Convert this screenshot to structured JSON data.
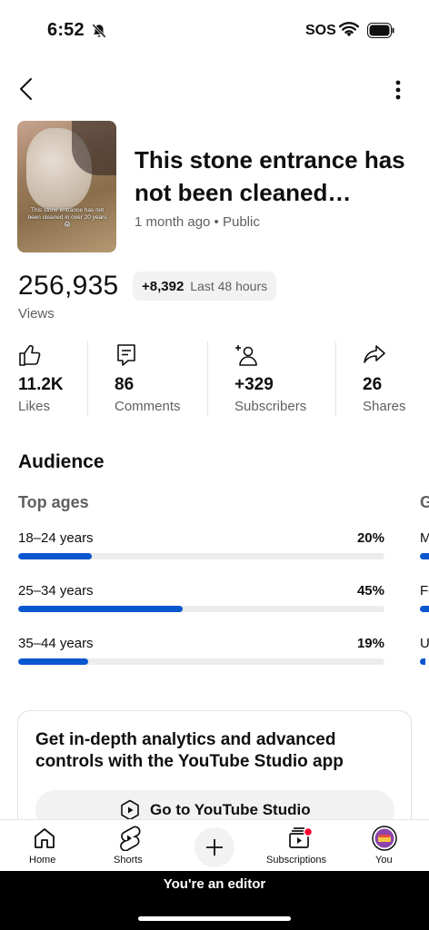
{
  "status_bar": {
    "time": "6:52",
    "sos": "SOS",
    "icons": [
      "bell-off-icon",
      "wifi-icon",
      "battery-icon"
    ]
  },
  "nav": {
    "back_icon": "chevron-left-icon",
    "more_icon": "more-vertical-icon"
  },
  "video": {
    "thumbnail_caption": "This stone entrance has not been cleaned in over 20 years 😱",
    "title": "This stone entrance has not been cleaned…",
    "meta": "1 month ago • Public"
  },
  "views": {
    "count": "256,935",
    "label": "Views",
    "delta": "+8,392",
    "delta_period": "Last 48 hours"
  },
  "stats": [
    {
      "icon": "thumbs-up-icon",
      "value": "11.2K",
      "label": "Likes"
    },
    {
      "icon": "comment-icon",
      "value": "86",
      "label": "Comments"
    },
    {
      "icon": "add-person-icon",
      "value": "+329",
      "label": "Subscribers"
    },
    {
      "icon": "share-icon",
      "value": "26",
      "label": "Shares"
    }
  ],
  "audience": {
    "title": "Audience",
    "ages_title": "Top ages",
    "next_card_title_peek": "G",
    "ages": [
      {
        "label": "18–24 years",
        "percent_text": "20%",
        "percent": 20
      },
      {
        "label": "25–34 years",
        "percent_text": "45%",
        "percent": 45
      },
      {
        "label": "35–44 years",
        "percent_text": "19%",
        "percent": 19
      }
    ],
    "next_card_peek_items": [
      "M",
      "Fe",
      "U"
    ]
  },
  "promo": {
    "text": "Get in-depth analytics and advanced controls with the YouTube Studio app",
    "button_label": "Go to YouTube Studio",
    "button_icon": "studio-icon"
  },
  "bottom_nav": {
    "home": "Home",
    "shorts": "Shorts",
    "create_icon": "plus-icon",
    "subscriptions": "Subscriptions",
    "you": "You"
  },
  "editor_banner": "You're an editor",
  "colors": {
    "accent": "#0b57d0",
    "notification": "#ff0033",
    "secondary_text": "#606060"
  }
}
